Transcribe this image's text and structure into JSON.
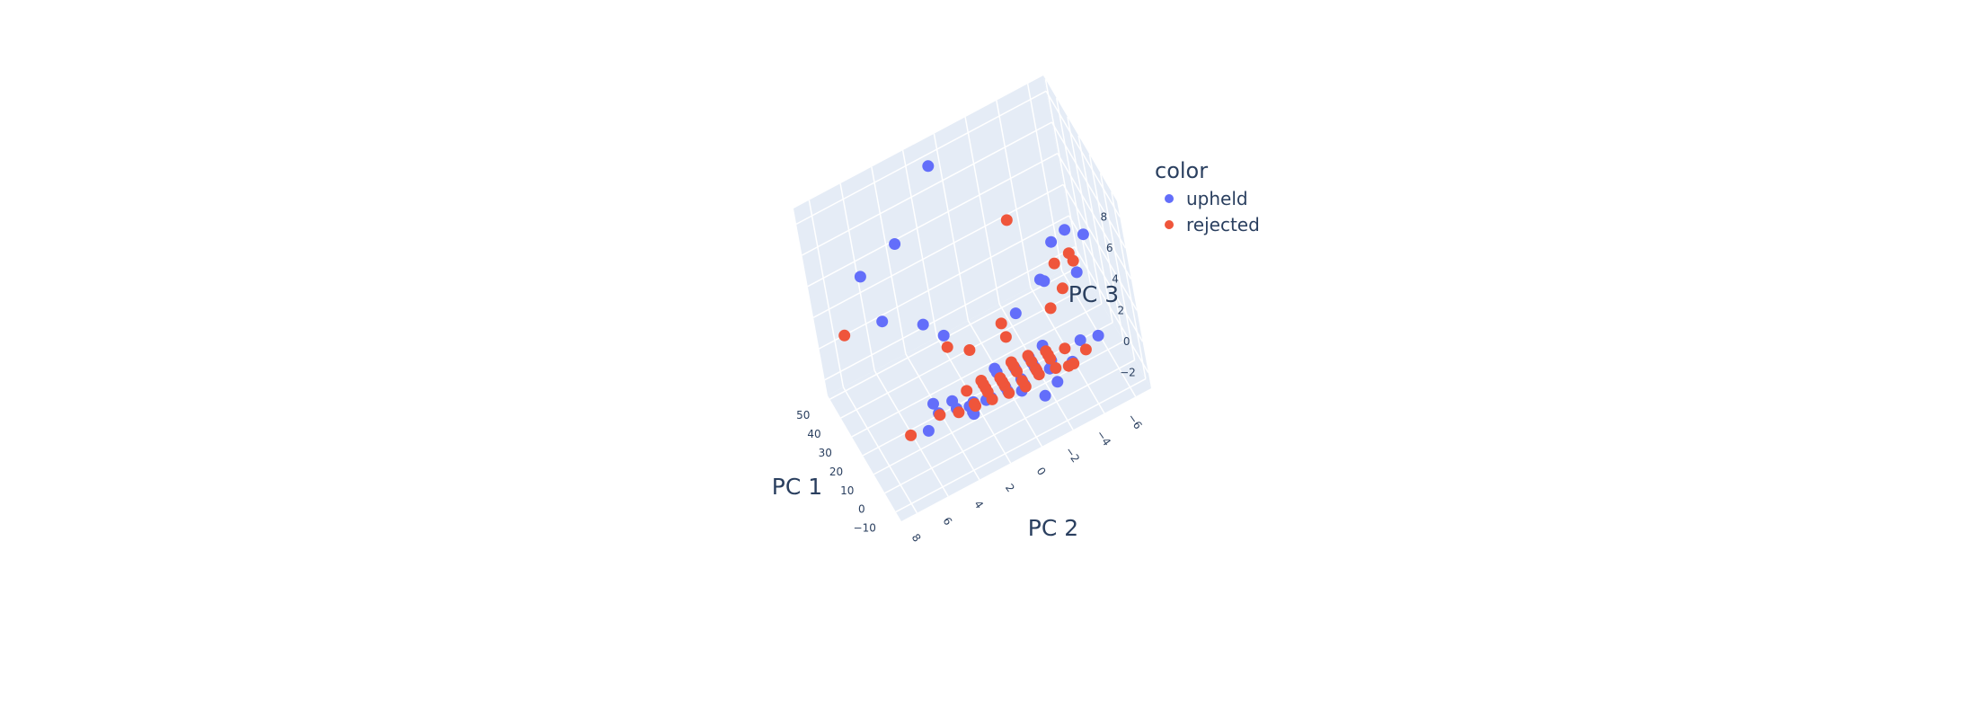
{
  "chart_data": {
    "type": "scatter3d",
    "axes": {
      "x": {
        "title": "PC 1",
        "ticks": [
          "−10",
          "0",
          "10",
          "20",
          "30",
          "40",
          "50"
        ],
        "range": [
          -15,
          52
        ]
      },
      "y": {
        "title": "PC 2",
        "ticks": [
          "8",
          "6",
          "4",
          "2",
          "0",
          "−2",
          "−4",
          "−6"
        ],
        "range": [
          -7,
          9
        ]
      },
      "z": {
        "title": "PC 3",
        "ticks": [
          "−2",
          "0",
          "2",
          "4",
          "6",
          "8"
        ],
        "range": [
          -3,
          9
        ]
      }
    },
    "legend": {
      "title": "color",
      "placement": "top-right"
    },
    "series": [
      {
        "name": "upheld",
        "color": "#636efa",
        "points": [
          [
            45,
            1,
            8.3
          ],
          [
            40,
            4,
            5.5
          ],
          [
            48,
            6,
            3.5
          ],
          [
            30,
            6,
            2.8
          ],
          [
            22,
            4,
            2.5
          ],
          [
            20,
            3,
            1.5
          ],
          [
            14,
            -4,
            4.5
          ],
          [
            16,
            -5,
            4.5
          ],
          [
            15,
            -6,
            3.8
          ],
          [
            10,
            -3,
            3
          ],
          [
            15,
            -3,
            2.5
          ],
          [
            10,
            -1,
            2
          ],
          [
            10,
            -5,
            2.5
          ],
          [
            0,
            5,
            0
          ],
          [
            5,
            5,
            0
          ],
          [
            -5,
            6,
            0
          ],
          [
            -2,
            4,
            0
          ],
          [
            0,
            3,
            -1
          ],
          [
            2,
            2,
            -1
          ],
          [
            -1,
            -4,
            0
          ],
          [
            -3,
            -5,
            0
          ],
          [
            -6,
            -2,
            -1
          ],
          [
            -9,
            -1,
            -1
          ],
          [
            -4,
            0,
            0
          ],
          [
            -5,
            2,
            0
          ],
          [
            1,
            -2,
            -1
          ],
          [
            -2,
            0,
            -1
          ],
          [
            2,
            0,
            0
          ],
          [
            4,
            1,
            0
          ],
          [
            5,
            -2,
            0
          ],
          [
            -7,
            0,
            0
          ],
          [
            -8,
            -3,
            0
          ],
          [
            6,
            1,
            0
          ],
          [
            3,
            3,
            -1
          ],
          [
            -1,
            1,
            0
          ],
          [
            0,
            -1,
            0
          ],
          [
            1,
            0,
            0
          ],
          [
            3,
            -1,
            0
          ],
          [
            -2,
            -1,
            0
          ],
          [
            -3,
            -2,
            0
          ],
          [
            -4,
            1,
            0
          ],
          [
            -6,
            1,
            0
          ],
          [
            -3,
            3,
            0
          ],
          [
            -1,
            3,
            -1
          ],
          [
            2,
            4,
            0
          ]
        ]
      },
      {
        "name": "rejected",
        "color": "#ef553b",
        "points": [
          [
            22,
            -2,
            6
          ],
          [
            38,
            8,
            2
          ],
          [
            18,
            3,
            1
          ],
          [
            15,
            -4,
            3
          ],
          [
            12,
            -5,
            3
          ],
          [
            16,
            -5,
            3
          ],
          [
            10,
            -4,
            2
          ],
          [
            9,
            0,
            2
          ],
          [
            8,
            -3,
            1.5
          ],
          [
            6,
            0,
            1.5
          ],
          [
            12,
            2,
            1
          ],
          [
            -3,
            7,
            0
          ],
          [
            -4,
            4,
            0
          ],
          [
            -5,
            3,
            0
          ],
          [
            -6,
            2,
            0
          ],
          [
            -1,
            5,
            0
          ],
          [
            0,
            2,
            0
          ],
          [
            2,
            2,
            0
          ],
          [
            4,
            -1,
            0
          ],
          [
            5,
            0,
            0
          ],
          [
            -2,
            -3,
            -1
          ],
          [
            -6,
            -4,
            0
          ],
          [
            -8,
            0,
            0
          ],
          [
            -7,
            -2,
            0
          ],
          [
            -3,
            -1,
            0
          ],
          [
            -1,
            -3,
            0
          ],
          [
            0,
            -2,
            0
          ],
          [
            1,
            -1,
            0
          ],
          [
            3,
            0,
            0
          ],
          [
            -2,
            2,
            0
          ],
          [
            -4,
            -1,
            0
          ],
          [
            -5,
            0,
            0
          ],
          [
            -3,
            1,
            0
          ],
          [
            -1,
            1,
            0
          ],
          [
            1,
            1,
            0
          ],
          [
            2,
            -2,
            0
          ],
          [
            4,
            2,
            0
          ],
          [
            -6,
            -1,
            0
          ],
          [
            -9,
            -3,
            0
          ],
          [
            0,
            0,
            0
          ],
          [
            3,
            3,
            0
          ],
          [
            -4,
            3,
            0
          ],
          [
            -7,
            1,
            0
          ],
          [
            -2,
            -2,
            0
          ]
        ]
      }
    ],
    "gridlines": true
  }
}
